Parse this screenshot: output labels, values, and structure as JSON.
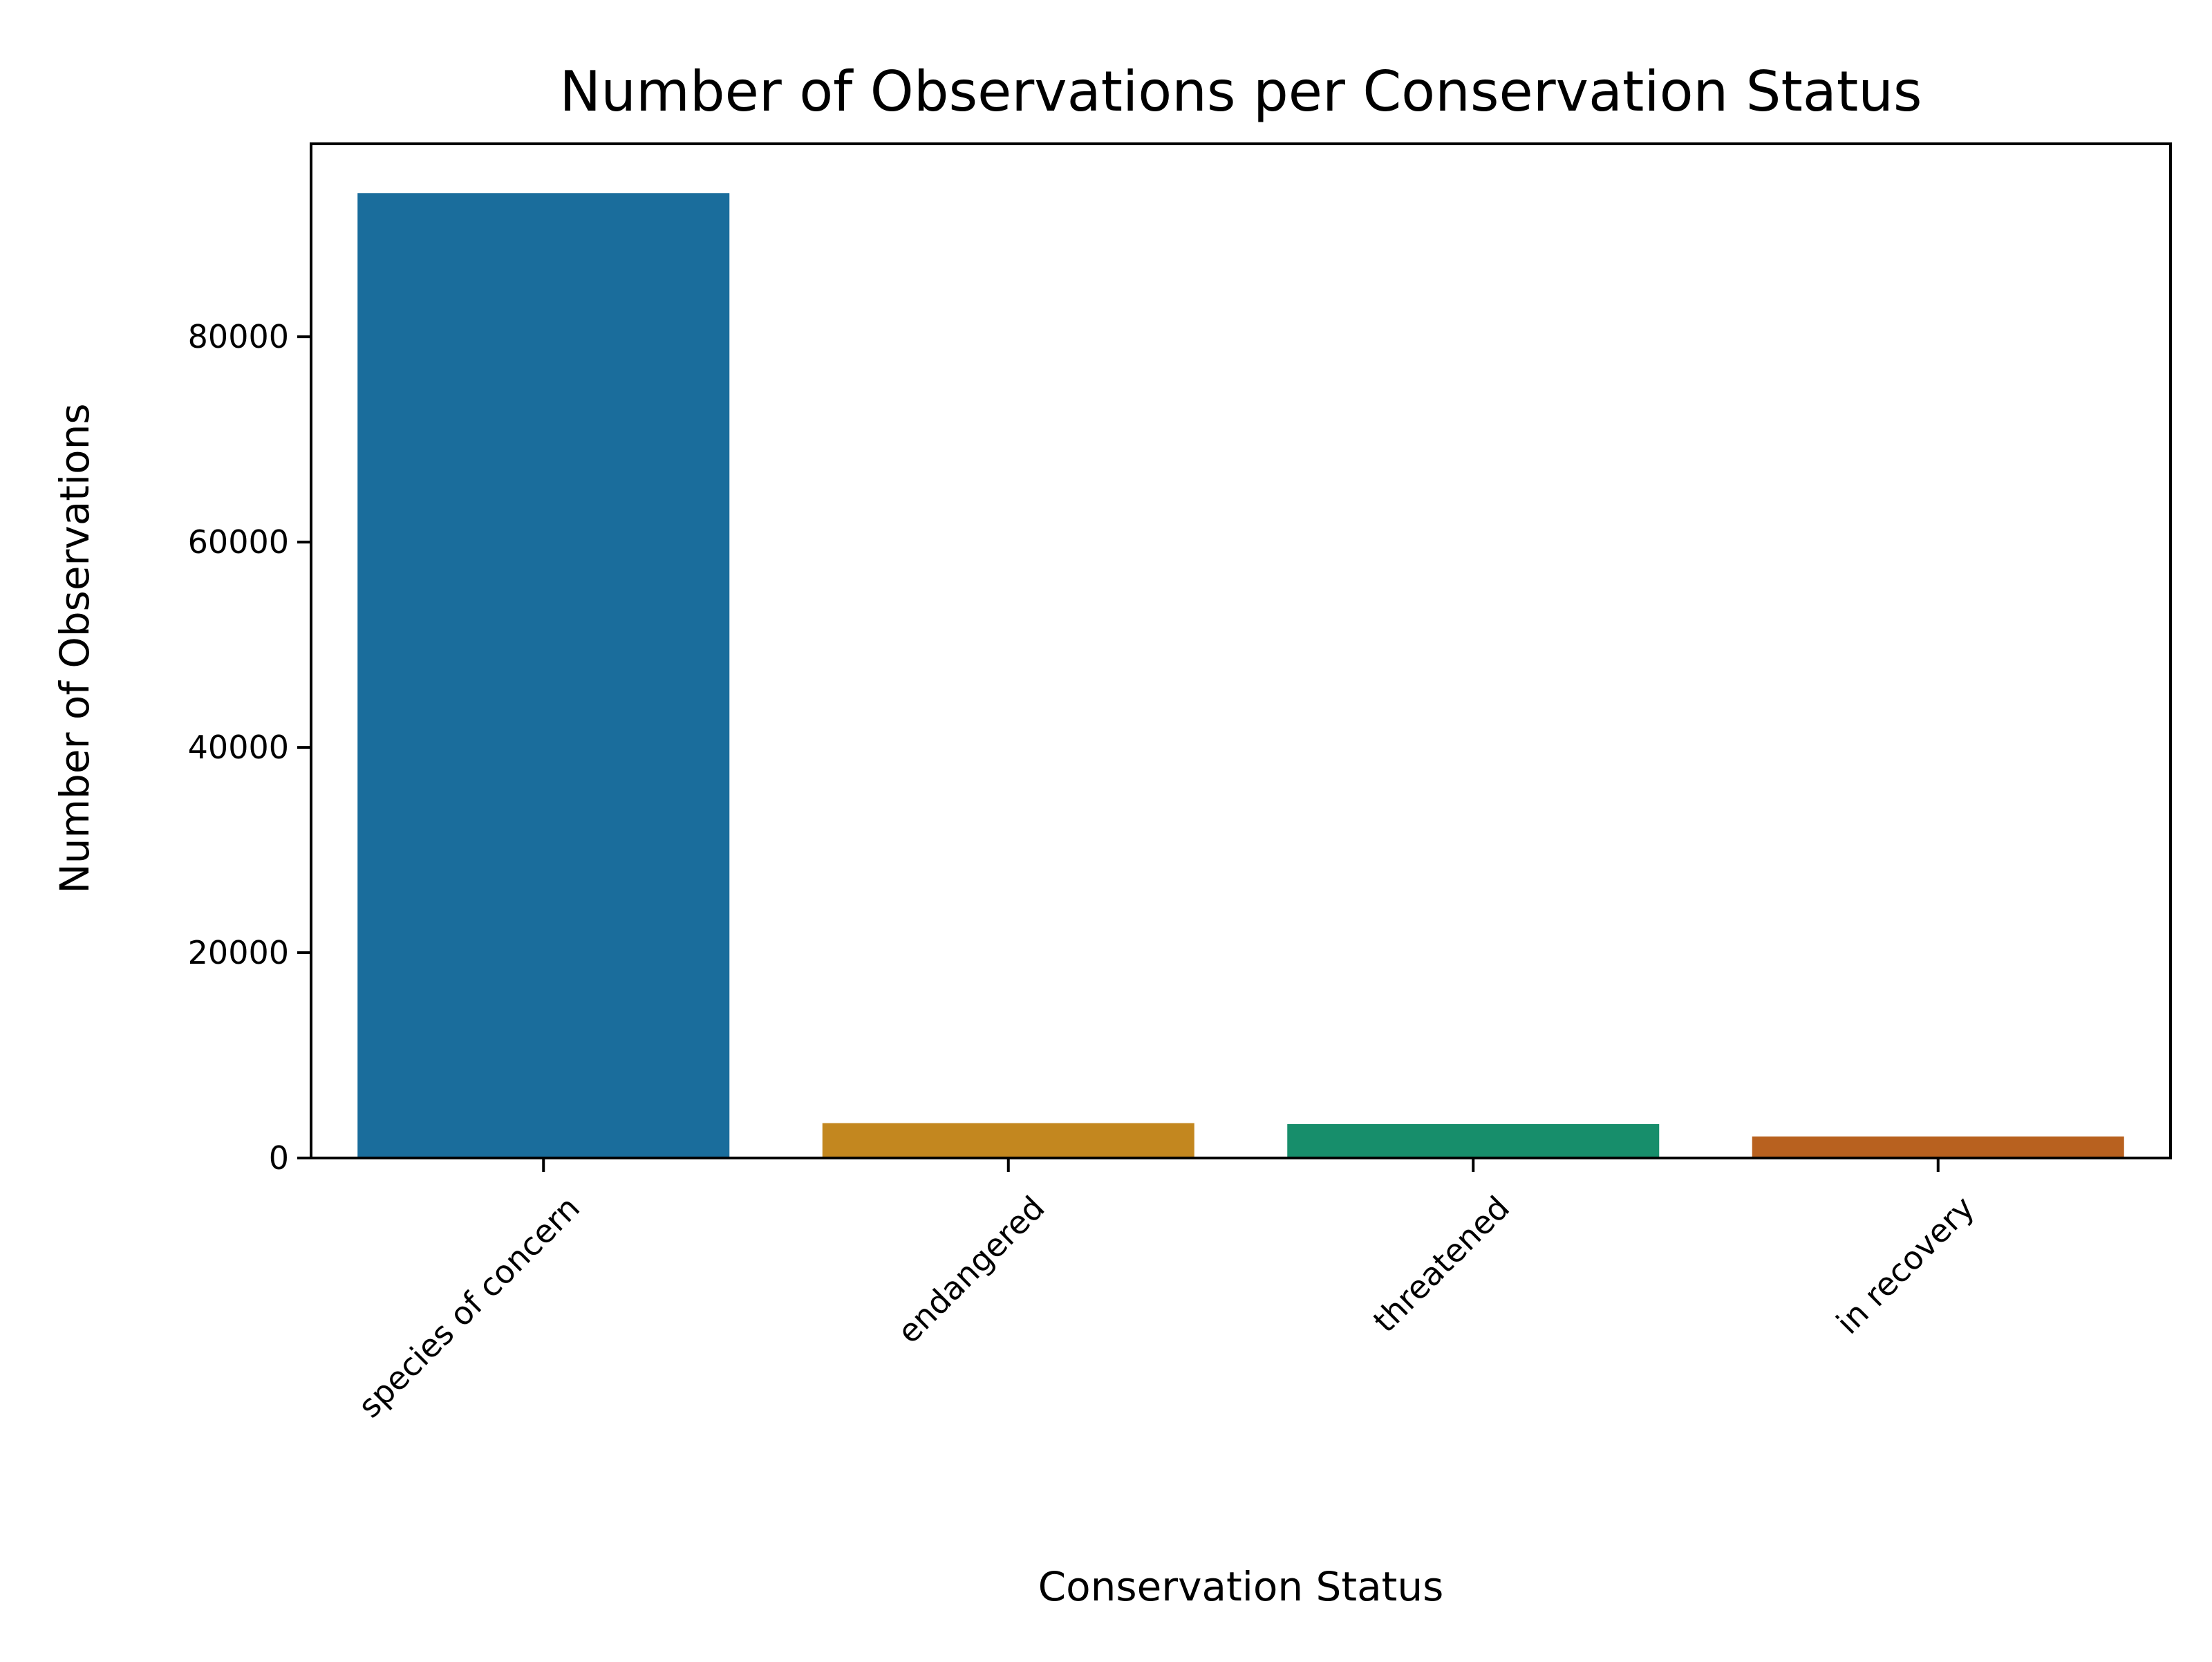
{
  "chart_data": {
    "type": "bar",
    "title": "Number of Observations per Conservation Status",
    "xlabel": "Conservation Status",
    "ylabel": "Number of Observations",
    "categories": [
      "species of concern",
      "endangered",
      "threatened",
      "in recovery"
    ],
    "values": [
      94000,
      3400,
      3300,
      2100
    ],
    "colors": [
      "#1a6d9c",
      "#c3871f",
      "#178e6b",
      "#b8611f"
    ],
    "ylim": [
      0,
      98800
    ],
    "yticks": [
      0,
      20000,
      40000,
      60000,
      80000
    ],
    "ytick_labels": [
      "0",
      "20000",
      "40000",
      "60000",
      "80000"
    ],
    "grid": false,
    "legend": "none"
  }
}
